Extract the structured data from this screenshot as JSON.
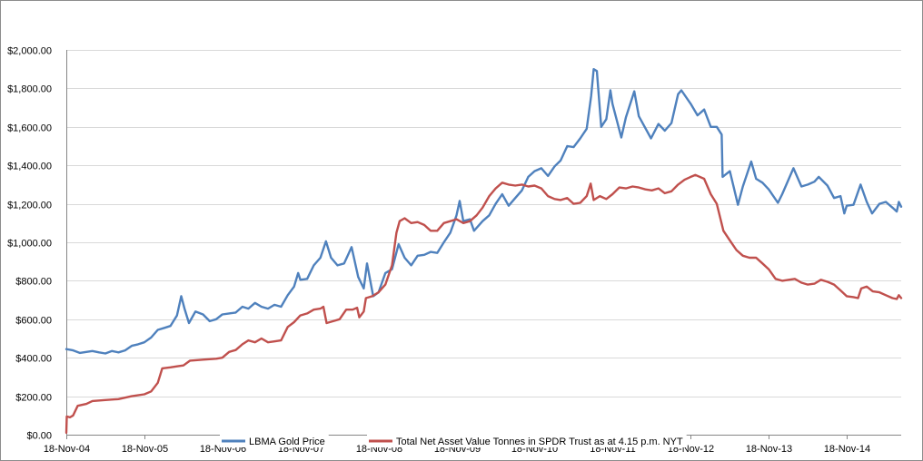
{
  "chart_data": {
    "type": "line",
    "title": "",
    "xlabel": "",
    "ylabel": "",
    "ylim": [
      0,
      2000
    ],
    "y_ticks": [
      0,
      200,
      400,
      600,
      800,
      1000,
      1200,
      1400,
      1600,
      1800,
      2000
    ],
    "y_tick_labels": [
      "$0.00",
      "$200.00",
      "$400.00",
      "$600.00",
      "$800.00",
      "$1,000.00",
      "$1,200.00",
      "$1,400.00",
      "$1,600.00",
      "$1,800.00",
      "$2,000.00"
    ],
    "x_range": [
      "2004-11-18",
      "2015-07-31"
    ],
    "x_tick_labels": [
      "18-Nov-04",
      "18-Nov-05",
      "18-Nov-06",
      "18-Nov-07",
      "18-Nov-08",
      "18-Nov-09",
      "18-Nov-10",
      "18-Nov-11",
      "18-Nov-12",
      "18-Nov-13",
      "18-Nov-14"
    ],
    "x_ticks": [
      "2004-11-18",
      "2005-11-18",
      "2006-11-18",
      "2007-11-18",
      "2008-11-18",
      "2009-11-18",
      "2010-11-18",
      "2011-11-18",
      "2012-11-18",
      "2013-11-18",
      "2014-11-18"
    ],
    "grid": "horizontal",
    "legend_position": "bottom",
    "series": [
      {
        "name": "LBMA Gold Price",
        "color": "#4f81bd",
        "points": [
          [
            "2004-11-18",
            445
          ],
          [
            "2004-12-20",
            438
          ],
          [
            "2005-01-20",
            425
          ],
          [
            "2005-02-20",
            430
          ],
          [
            "2005-03-20",
            435
          ],
          [
            "2005-04-20",
            428
          ],
          [
            "2005-05-20",
            422
          ],
          [
            "2005-06-20",
            435
          ],
          [
            "2005-07-20",
            428
          ],
          [
            "2005-08-20",
            438
          ],
          [
            "2005-09-20",
            462
          ],
          [
            "2005-10-20",
            470
          ],
          [
            "2005-11-18",
            480
          ],
          [
            "2005-12-20",
            505
          ],
          [
            "2006-01-20",
            545
          ],
          [
            "2006-02-20",
            555
          ],
          [
            "2006-03-20",
            565
          ],
          [
            "2006-04-20",
            620
          ],
          [
            "2006-05-10",
            720
          ],
          [
            "2006-05-25",
            655
          ],
          [
            "2006-06-15",
            580
          ],
          [
            "2006-07-15",
            640
          ],
          [
            "2006-08-20",
            625
          ],
          [
            "2006-09-20",
            590
          ],
          [
            "2006-10-20",
            600
          ],
          [
            "2006-11-18",
            625
          ],
          [
            "2006-12-20",
            630
          ],
          [
            "2007-01-20",
            635
          ],
          [
            "2007-02-20",
            665
          ],
          [
            "2007-03-20",
            655
          ],
          [
            "2007-04-20",
            685
          ],
          [
            "2007-05-20",
            665
          ],
          [
            "2007-06-20",
            655
          ],
          [
            "2007-07-20",
            675
          ],
          [
            "2007-08-20",
            665
          ],
          [
            "2007-09-20",
            725
          ],
          [
            "2007-10-20",
            770
          ],
          [
            "2007-11-08",
            840
          ],
          [
            "2007-11-18",
            805
          ],
          [
            "2007-12-20",
            810
          ],
          [
            "2008-01-20",
            880
          ],
          [
            "2008-02-20",
            920
          ],
          [
            "2008-03-17",
            1005
          ],
          [
            "2008-04-10",
            920
          ],
          [
            "2008-05-10",
            880
          ],
          [
            "2008-06-10",
            890
          ],
          [
            "2008-07-15",
            975
          ],
          [
            "2008-08-15",
            820
          ],
          [
            "2008-09-10",
            760
          ],
          [
            "2008-09-25",
            890
          ],
          [
            "2008-10-24",
            720
          ],
          [
            "2008-11-18",
            740
          ],
          [
            "2008-12-20",
            840
          ],
          [
            "2009-01-20",
            860
          ],
          [
            "2009-02-20",
            990
          ],
          [
            "2009-03-20",
            920
          ],
          [
            "2009-04-20",
            880
          ],
          [
            "2009-05-20",
            930
          ],
          [
            "2009-06-20",
            935
          ],
          [
            "2009-07-20",
            950
          ],
          [
            "2009-08-20",
            945
          ],
          [
            "2009-09-20",
            1000
          ],
          [
            "2009-10-20",
            1050
          ],
          [
            "2009-11-18",
            1140
          ],
          [
            "2009-12-03",
            1215
          ],
          [
            "2009-12-20",
            1110
          ],
          [
            "2010-01-20",
            1120
          ],
          [
            "2010-02-08",
            1060
          ],
          [
            "2010-03-20",
            1110
          ],
          [
            "2010-04-20",
            1140
          ],
          [
            "2010-05-20",
            1200
          ],
          [
            "2010-06-20",
            1250
          ],
          [
            "2010-07-20",
            1190
          ],
          [
            "2010-08-20",
            1230
          ],
          [
            "2010-09-20",
            1270
          ],
          [
            "2010-10-20",
            1340
          ],
          [
            "2010-11-18",
            1370
          ],
          [
            "2010-12-20",
            1385
          ],
          [
            "2011-01-20",
            1345
          ],
          [
            "2011-02-20",
            1395
          ],
          [
            "2011-03-20",
            1425
          ],
          [
            "2011-04-20",
            1500
          ],
          [
            "2011-05-20",
            1495
          ],
          [
            "2011-06-20",
            1540
          ],
          [
            "2011-07-20",
            1590
          ],
          [
            "2011-08-10",
            1760
          ],
          [
            "2011-08-22",
            1900
          ],
          [
            "2011-09-06",
            1890
          ],
          [
            "2011-09-26",
            1600
          ],
          [
            "2011-10-20",
            1640
          ],
          [
            "2011-11-08",
            1790
          ],
          [
            "2011-11-18",
            1720
          ],
          [
            "2011-12-29",
            1545
          ],
          [
            "2012-01-20",
            1650
          ],
          [
            "2012-02-28",
            1785
          ],
          [
            "2012-03-20",
            1655
          ],
          [
            "2012-05-16",
            1540
          ],
          [
            "2012-06-20",
            1615
          ],
          [
            "2012-07-20",
            1580
          ],
          [
            "2012-08-20",
            1620
          ],
          [
            "2012-09-20",
            1770
          ],
          [
            "2012-10-05",
            1790
          ],
          [
            "2012-11-18",
            1720
          ],
          [
            "2012-12-20",
            1660
          ],
          [
            "2013-01-20",
            1690
          ],
          [
            "2013-02-20",
            1600
          ],
          [
            "2013-03-20",
            1600
          ],
          [
            "2013-04-12",
            1560
          ],
          [
            "2013-04-16",
            1340
          ],
          [
            "2013-05-20",
            1370
          ],
          [
            "2013-06-27",
            1195
          ],
          [
            "2013-07-20",
            1290
          ],
          [
            "2013-08-28",
            1420
          ],
          [
            "2013-09-20",
            1330
          ],
          [
            "2013-10-20",
            1310
          ],
          [
            "2013-11-18",
            1275
          ],
          [
            "2013-12-31",
            1205
          ],
          [
            "2014-01-20",
            1250
          ],
          [
            "2014-03-14",
            1385
          ],
          [
            "2014-04-20",
            1290
          ],
          [
            "2014-05-20",
            1300
          ],
          [
            "2014-06-20",
            1315
          ],
          [
            "2014-07-10",
            1340
          ],
          [
            "2014-08-20",
            1295
          ],
          [
            "2014-09-20",
            1230
          ],
          [
            "2014-10-20",
            1240
          ],
          [
            "2014-11-07",
            1150
          ],
          [
            "2014-11-18",
            1190
          ],
          [
            "2014-12-20",
            1195
          ],
          [
            "2015-01-22",
            1300
          ],
          [
            "2015-02-20",
            1210
          ],
          [
            "2015-03-17",
            1150
          ],
          [
            "2015-04-20",
            1200
          ],
          [
            "2015-05-20",
            1210
          ],
          [
            "2015-06-20",
            1180
          ],
          [
            "2015-07-10",
            1160
          ],
          [
            "2015-07-20",
            1210
          ],
          [
            "2015-07-31",
            1185
          ]
        ]
      },
      {
        "name": "Total Net Asset Value Tonnes in SPDR Trust as at 4.15 p.m. NYT",
        "color": "#c0504d",
        "points": [
          [
            "2004-11-18",
            10
          ],
          [
            "2004-11-20",
            95
          ],
          [
            "2004-12-05",
            90
          ],
          [
            "2004-12-20",
            100
          ],
          [
            "2005-01-10",
            150
          ],
          [
            "2005-02-20",
            160
          ],
          [
            "2005-03-20",
            175
          ],
          [
            "2005-05-20",
            180
          ],
          [
            "2005-07-20",
            185
          ],
          [
            "2005-09-20",
            200
          ],
          [
            "2005-11-18",
            210
          ],
          [
            "2005-12-20",
            225
          ],
          [
            "2006-01-20",
            270
          ],
          [
            "2006-02-10",
            345
          ],
          [
            "2006-03-20",
            350
          ],
          [
            "2006-04-20",
            355
          ],
          [
            "2006-05-20",
            360
          ],
          [
            "2006-06-20",
            385
          ],
          [
            "2006-08-20",
            390
          ],
          [
            "2006-10-20",
            395
          ],
          [
            "2006-11-18",
            400
          ],
          [
            "2006-12-20",
            430
          ],
          [
            "2007-01-20",
            440
          ],
          [
            "2007-02-20",
            470
          ],
          [
            "2007-03-20",
            490
          ],
          [
            "2007-04-20",
            480
          ],
          [
            "2007-05-20",
            500
          ],
          [
            "2007-06-20",
            480
          ],
          [
            "2007-07-20",
            485
          ],
          [
            "2007-08-20",
            490
          ],
          [
            "2007-09-20",
            560
          ],
          [
            "2007-10-20",
            585
          ],
          [
            "2007-11-18",
            620
          ],
          [
            "2007-12-20",
            630
          ],
          [
            "2008-01-20",
            650
          ],
          [
            "2008-02-20",
            655
          ],
          [
            "2008-03-05",
            665
          ],
          [
            "2008-03-20",
            580
          ],
          [
            "2008-04-20",
            590
          ],
          [
            "2008-05-20",
            600
          ],
          [
            "2008-06-20",
            650
          ],
          [
            "2008-07-20",
            650
          ],
          [
            "2008-08-10",
            660
          ],
          [
            "2008-08-20",
            610
          ],
          [
            "2008-09-10",
            640
          ],
          [
            "2008-09-20",
            710
          ],
          [
            "2008-10-20",
            720
          ],
          [
            "2008-11-18",
            740
          ],
          [
            "2008-12-20",
            780
          ],
          [
            "2009-01-20",
            880
          ],
          [
            "2009-02-10",
            1050
          ],
          [
            "2009-02-25",
            1110
          ],
          [
            "2009-03-20",
            1125
          ],
          [
            "2009-04-20",
            1100
          ],
          [
            "2009-05-20",
            1105
          ],
          [
            "2009-06-20",
            1090
          ],
          [
            "2009-07-20",
            1060
          ],
          [
            "2009-08-20",
            1060
          ],
          [
            "2009-09-20",
            1100
          ],
          [
            "2009-10-20",
            1110
          ],
          [
            "2009-11-18",
            1120
          ],
          [
            "2009-12-20",
            1100
          ],
          [
            "2010-01-20",
            1110
          ],
          [
            "2010-02-20",
            1140
          ],
          [
            "2010-03-20",
            1180
          ],
          [
            "2010-04-20",
            1240
          ],
          [
            "2010-05-20",
            1280
          ],
          [
            "2010-06-20",
            1310
          ],
          [
            "2010-07-20",
            1300
          ],
          [
            "2010-08-20",
            1295
          ],
          [
            "2010-09-20",
            1300
          ],
          [
            "2010-10-20",
            1290
          ],
          [
            "2010-11-18",
            1295
          ],
          [
            "2010-12-20",
            1280
          ],
          [
            "2011-01-20",
            1240
          ],
          [
            "2011-02-20",
            1225
          ],
          [
            "2011-03-20",
            1220
          ],
          [
            "2011-04-20",
            1230
          ],
          [
            "2011-05-20",
            1200
          ],
          [
            "2011-06-20",
            1205
          ],
          [
            "2011-07-20",
            1240
          ],
          [
            "2011-08-08",
            1305
          ],
          [
            "2011-08-22",
            1220
          ],
          [
            "2011-09-20",
            1240
          ],
          [
            "2011-10-20",
            1225
          ],
          [
            "2011-11-18",
            1250
          ],
          [
            "2011-12-20",
            1285
          ],
          [
            "2012-01-20",
            1280
          ],
          [
            "2012-02-20",
            1290
          ],
          [
            "2012-03-20",
            1285
          ],
          [
            "2012-04-20",
            1275
          ],
          [
            "2012-05-20",
            1270
          ],
          [
            "2012-06-20",
            1280
          ],
          [
            "2012-07-20",
            1255
          ],
          [
            "2012-08-20",
            1265
          ],
          [
            "2012-09-20",
            1300
          ],
          [
            "2012-10-20",
            1325
          ],
          [
            "2012-11-18",
            1340
          ],
          [
            "2012-12-10",
            1350
          ],
          [
            "2013-01-20",
            1330
          ],
          [
            "2013-02-20",
            1250
          ],
          [
            "2013-03-20",
            1200
          ],
          [
            "2013-04-20",
            1060
          ],
          [
            "2013-05-20",
            1010
          ],
          [
            "2013-06-20",
            960
          ],
          [
            "2013-07-20",
            930
          ],
          [
            "2013-08-20",
            920
          ],
          [
            "2013-09-20",
            920
          ],
          [
            "2013-10-20",
            890
          ],
          [
            "2013-11-18",
            860
          ],
          [
            "2013-12-20",
            810
          ],
          [
            "2014-01-20",
            800
          ],
          [
            "2014-02-20",
            805
          ],
          [
            "2014-03-20",
            810
          ],
          [
            "2014-04-20",
            790
          ],
          [
            "2014-05-20",
            780
          ],
          [
            "2014-06-20",
            785
          ],
          [
            "2014-07-20",
            805
          ],
          [
            "2014-08-20",
            795
          ],
          [
            "2014-09-20",
            780
          ],
          [
            "2014-10-20",
            750
          ],
          [
            "2014-11-18",
            720
          ],
          [
            "2014-12-20",
            715
          ],
          [
            "2015-01-10",
            710
          ],
          [
            "2015-01-25",
            760
          ],
          [
            "2015-02-20",
            770
          ],
          [
            "2015-03-20",
            745
          ],
          [
            "2015-04-20",
            740
          ],
          [
            "2015-05-20",
            725
          ],
          [
            "2015-06-20",
            710
          ],
          [
            "2015-07-10",
            705
          ],
          [
            "2015-07-20",
            725
          ],
          [
            "2015-07-31",
            710
          ]
        ]
      }
    ]
  }
}
